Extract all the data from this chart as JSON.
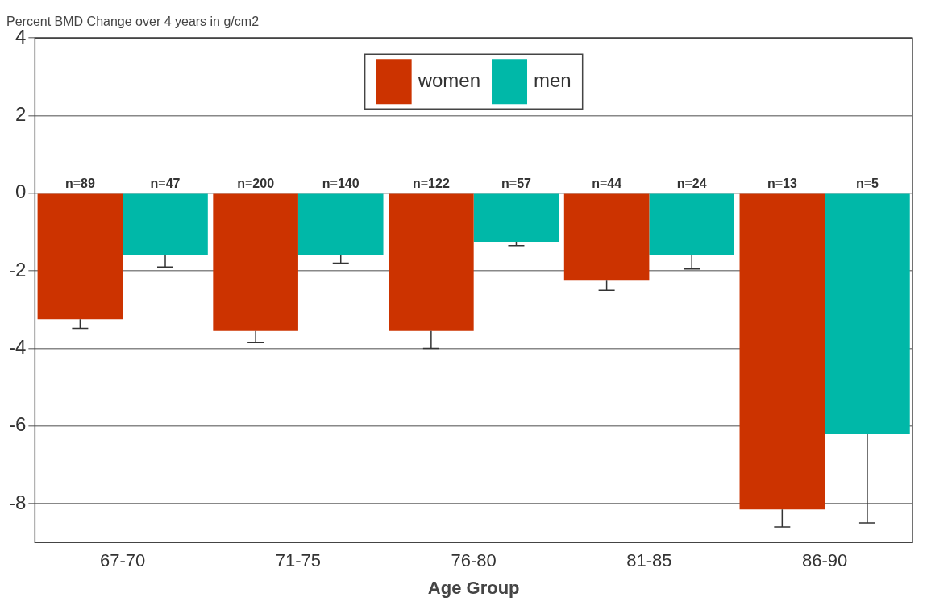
{
  "chart_data": {
    "type": "bar",
    "title": "Percent BMD Change over 4 years in g/cm2",
    "xlabel": "Age Group",
    "categories": [
      "67-70",
      "71-75",
      "76-80",
      "81-85",
      "86-90"
    ],
    "series": [
      {
        "name": "women",
        "color": "#cc3300",
        "values": [
          -3.25,
          -3.55,
          -3.55,
          -2.25,
          -8.15
        ],
        "errors": [
          [
            -3.48,
            -3.25
          ],
          [
            -3.85,
            -3.55
          ],
          [
            -4.0,
            -3.55
          ],
          [
            -2.5,
            -2.25
          ],
          [
            -8.6,
            -8.15
          ]
        ]
      },
      {
        "name": "men",
        "color": "#00b8a8",
        "values": [
          -1.6,
          -1.6,
          -1.25,
          -1.6,
          -6.2
        ],
        "errors": [
          [
            -1.9,
            -1.6
          ],
          [
            -1.8,
            -1.6
          ],
          [
            -1.35,
            -1.25
          ],
          [
            -1.95,
            -1.6
          ],
          [
            -8.5,
            -6.2
          ]
        ]
      }
    ],
    "annotations": [
      "n=89",
      "n=47",
      "n=200",
      "n=140",
      "n=122",
      "n=57",
      "n=44",
      "n=24",
      "n=13",
      "n=5"
    ],
    "ylim": [
      -9,
      4
    ],
    "yticks": [
      -8,
      -6,
      -4,
      -2,
      0,
      2,
      4
    ],
    "grid": "y",
    "legend": "top"
  }
}
